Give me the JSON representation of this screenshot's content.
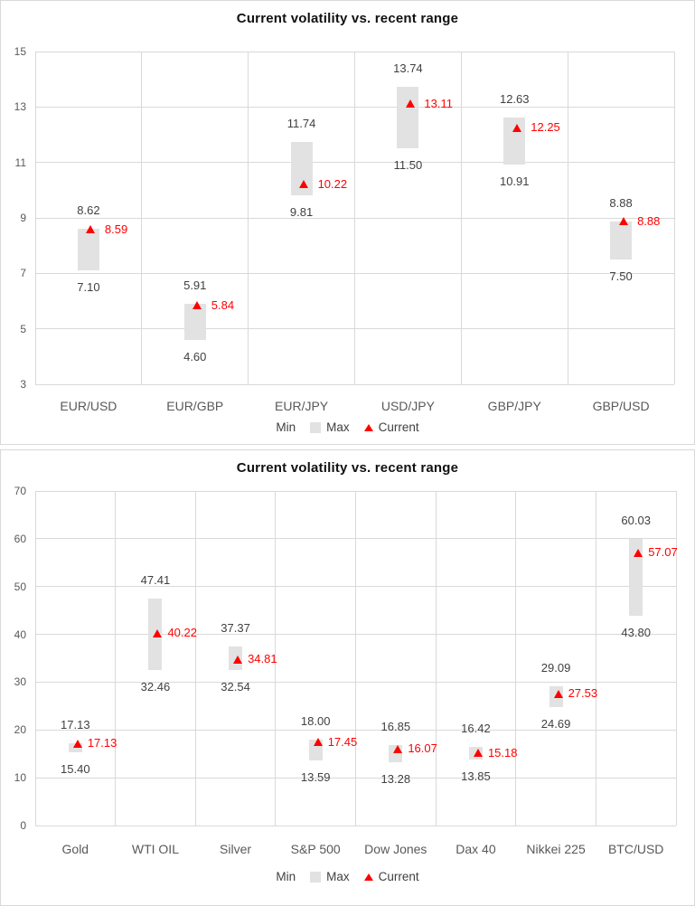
{
  "colors": {
    "bar_fill": "#e2e2e2",
    "current_marker": "#ff0000",
    "gridline": "#d9d9d9",
    "tick_label": "#595959",
    "category_label": "#595959",
    "data_label": "#404040",
    "title": "#111111",
    "chart_border": "#d9d9d9"
  },
  "legend": {
    "items": [
      {
        "label": "Min",
        "marker": "none"
      },
      {
        "label": "Max",
        "marker": "square"
      },
      {
        "label": "Current",
        "marker": "triangle"
      }
    ]
  },
  "chart_data": [
    {
      "type": "bar",
      "subtype": "floating-range-bar-with-current-marker",
      "title": "Current volatility vs. recent range",
      "categories": [
        "EUR/USD",
        "EUR/GBP",
        "EUR/JPY",
        "USD/JPY",
        "GBP/JPY",
        "GBP/USD"
      ],
      "series": [
        {
          "name": "Min",
          "values": [
            7.1,
            4.6,
            9.81,
            11.5,
            10.91,
            7.5
          ]
        },
        {
          "name": "Max",
          "values": [
            8.62,
            5.91,
            11.74,
            13.74,
            12.63,
            8.88
          ]
        },
        {
          "name": "Current",
          "values": [
            8.59,
            5.84,
            10.22,
            13.11,
            12.25,
            8.88
          ]
        }
      ],
      "ylim": [
        3,
        15
      ],
      "yticks": [
        15,
        13,
        11,
        9,
        7,
        5,
        3
      ],
      "grid": true,
      "legend_position": "bottom",
      "value_format": "0.00"
    },
    {
      "type": "bar",
      "subtype": "floating-range-bar-with-current-marker",
      "title": "Current volatility vs. recent range",
      "categories": [
        "Gold",
        "WTI OIL",
        "Silver",
        "S&P 500",
        "Dow Jones",
        "Dax 40",
        "Nikkei 225",
        "BTC/USD"
      ],
      "series": [
        {
          "name": "Min",
          "values": [
            15.4,
            32.46,
            32.54,
            13.59,
            13.28,
            13.85,
            24.69,
            43.8
          ]
        },
        {
          "name": "Max",
          "values": [
            17.13,
            47.41,
            37.37,
            18.0,
            16.85,
            16.42,
            29.09,
            60.03
          ]
        },
        {
          "name": "Current",
          "values": [
            17.13,
            40.22,
            34.81,
            17.45,
            16.07,
            15.18,
            27.53,
            57.07
          ]
        }
      ],
      "ylim": [
        0,
        70
      ],
      "yticks": [
        70,
        60,
        50,
        40,
        30,
        20,
        10,
        0
      ],
      "grid": true,
      "legend_position": "bottom",
      "value_format": "0.00"
    }
  ]
}
